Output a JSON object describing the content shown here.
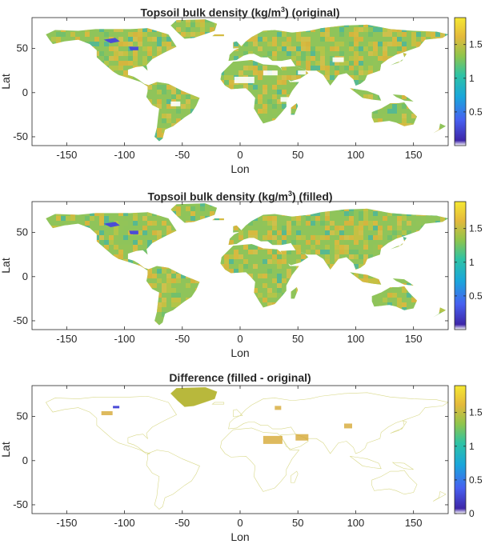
{
  "figure": {
    "layout": "three vertically stacked world maps with colorbars",
    "colors": {
      "land_yellow": "#d8b93a",
      "land_green": "#8fc45a",
      "land_teal": "#3fb8a8",
      "low_blue": "#4b4bd6",
      "axis": "#262626"
    }
  },
  "chart_data": [
    {
      "type": "heatmap",
      "title": "Topsoil bulk density (kg/m³) (original)",
      "title_main": "Topsoil bulk density (kg/m",
      "title_sup": "3",
      "title_tail": ") (original)",
      "xlabel": "Lon",
      "ylabel": "Lat",
      "xlim": [
        -180,
        180
      ],
      "ylim": [
        -60,
        85
      ],
      "xticks": [
        -150,
        -100,
        -50,
        0,
        50,
        100,
        150
      ],
      "yticks": [
        -50,
        0,
        50
      ],
      "colorbar": {
        "ticks": [
          0.5,
          1,
          1.5
        ],
        "range": [
          0,
          1.9
        ]
      }
    },
    {
      "type": "heatmap",
      "title": "Topsoil bulk density (kg/m³) (filled)",
      "title_main": "Topsoil bulk density (kg/m",
      "title_sup": "3",
      "title_tail": ") (filled)",
      "xlabel": "Lon",
      "ylabel": "Lat",
      "xlim": [
        -180,
        180
      ],
      "ylim": [
        -60,
        85
      ],
      "xticks": [
        -150,
        -100,
        -50,
        0,
        50,
        100,
        150
      ],
      "yticks": [
        -50,
        0,
        50
      ],
      "colorbar": {
        "ticks": [
          0.5,
          1,
          1.5
        ],
        "range": [
          0,
          1.9
        ]
      }
    },
    {
      "type": "heatmap",
      "title": "Difference (filled - original)",
      "title_main": "Difference (filled - original)",
      "title_sup": "",
      "title_tail": "",
      "xlabel": "Lon",
      "ylabel": "Lat",
      "xlim": [
        -180,
        180
      ],
      "ylim": [
        -60,
        85
      ],
      "xticks": [
        -150,
        -100,
        -50,
        0,
        50,
        100,
        150
      ],
      "yticks": [
        -50,
        0,
        50
      ],
      "colorbar": {
        "ticks": [
          0,
          0.5,
          1,
          1.5
        ],
        "range": [
          0,
          1.9
        ]
      }
    }
  ]
}
